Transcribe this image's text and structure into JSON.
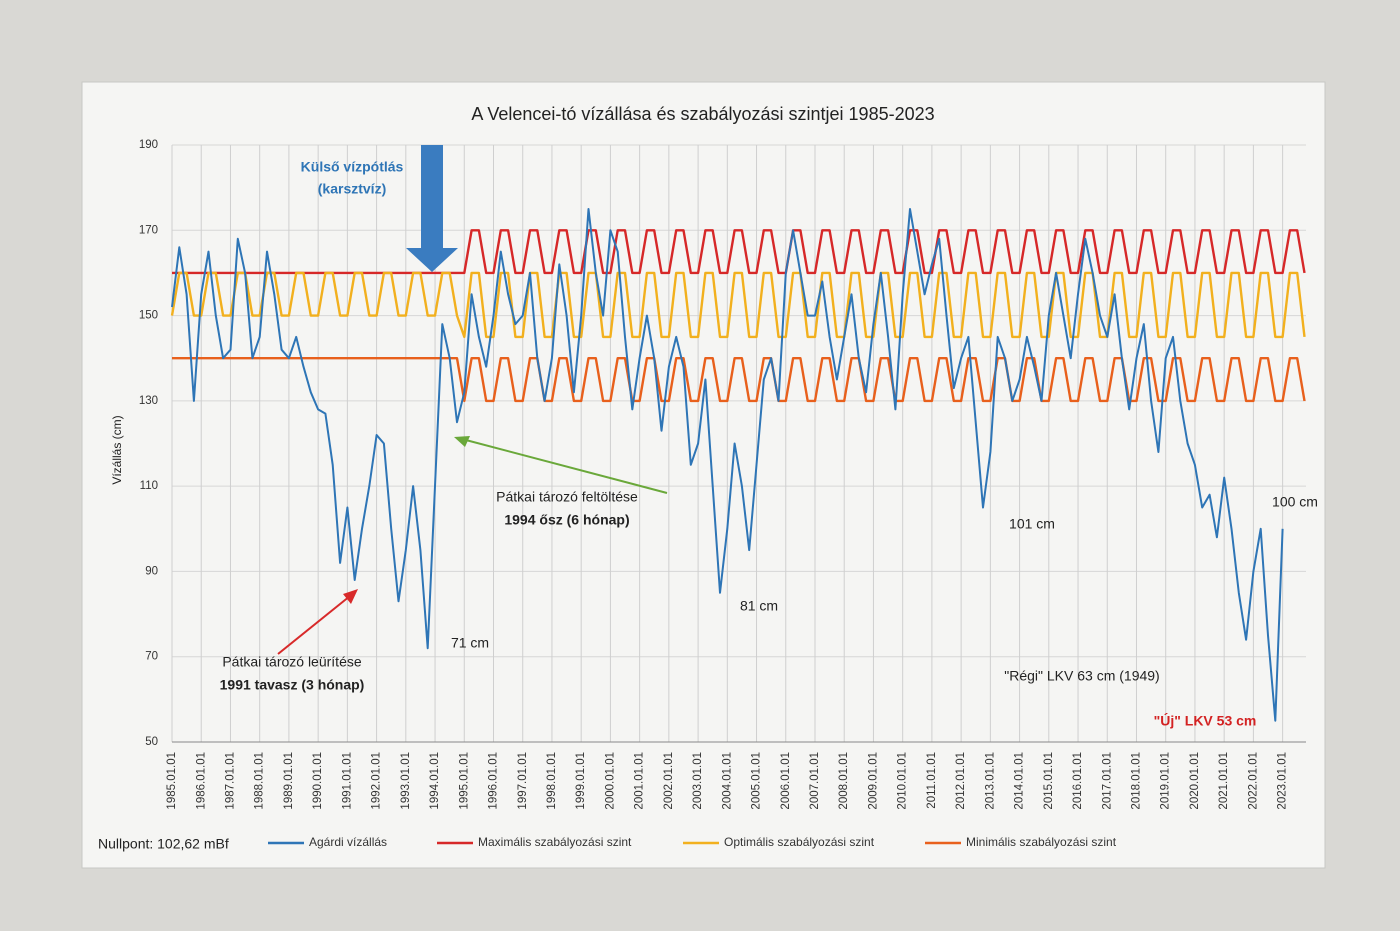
{
  "chart_data": {
    "type": "line",
    "title": "A Velencei-tó vízállása és szabályozási szintjei 1985-2023",
    "ylabel": "Vízállás (cm)",
    "xlim": [
      1985,
      2023.8
    ],
    "ylim": [
      50,
      190
    ],
    "yticks": [
      50,
      70,
      90,
      110,
      130,
      150,
      170,
      190
    ],
    "xticks": [
      {
        "value": 1985,
        "label": "1985.01.01"
      },
      {
        "value": 1986,
        "label": "1986.01.01"
      },
      {
        "value": 1987,
        "label": "1987.01.01"
      },
      {
        "value": 1988,
        "label": "1988.01.01"
      },
      {
        "value": 1989,
        "label": "1989.01.01"
      },
      {
        "value": 1990,
        "label": "1990.01.01"
      },
      {
        "value": 1991,
        "label": "1991.01.01"
      },
      {
        "value": 1992,
        "label": "1992.01.01"
      },
      {
        "value": 1993,
        "label": "1993.01.01"
      },
      {
        "value": 1994,
        "label": "1994.01.01"
      },
      {
        "value": 1995,
        "label": "1995.01.01"
      },
      {
        "value": 1996,
        "label": "1996.01.01"
      },
      {
        "value": 1997,
        "label": "1997.01.01"
      },
      {
        "value": 1998,
        "label": "1998.01.01"
      },
      {
        "value": 1999,
        "label": "1999.01.01"
      },
      {
        "value": 2000,
        "label": "2000.01.01"
      },
      {
        "value": 2001,
        "label": "2001.01.01"
      },
      {
        "value": 2002,
        "label": "2002.01.01"
      },
      {
        "value": 2003,
        "label": "2003.01.01"
      },
      {
        "value": 2004,
        "label": "2004.01.01"
      },
      {
        "value": 2005,
        "label": "2005.01.01"
      },
      {
        "value": 2006,
        "label": "2006.01.01"
      },
      {
        "value": 2007,
        "label": "2007.01.01"
      },
      {
        "value": 2008,
        "label": "2008.01.01"
      },
      {
        "value": 2009,
        "label": "2009.01.01"
      },
      {
        "value": 2010,
        "label": "2010.01.01"
      },
      {
        "value": 2011,
        "label": "2011.01.01"
      },
      {
        "value": 2012,
        "label": "2012.01.01"
      },
      {
        "value": 2013,
        "label": "2013.01.01"
      },
      {
        "value": 2014,
        "label": "2014.01.01"
      },
      {
        "value": 2015,
        "label": "2015.01.01"
      },
      {
        "value": 2016,
        "label": "2016.01.01"
      },
      {
        "value": 2017,
        "label": "2017.01.01"
      },
      {
        "value": 2018,
        "label": "2018.01.01"
      },
      {
        "value": 2019,
        "label": "2019.01.01"
      },
      {
        "value": 2020,
        "label": "2020.01.01"
      },
      {
        "value": 2021,
        "label": "2021.01.01"
      },
      {
        "value": 2022,
        "label": "2022.01.01"
      },
      {
        "value": 2023,
        "label": "2023.01.01"
      }
    ],
    "grid": true,
    "x": [
      1985,
      1985.25,
      1985.5,
      1985.75,
      1986,
      1986.25,
      1986.5,
      1986.75,
      1987,
      1987.25,
      1987.5,
      1987.75,
      1988,
      1988.25,
      1988.5,
      1988.75,
      1989,
      1989.25,
      1989.5,
      1989.75,
      1990,
      1990.25,
      1990.5,
      1990.75,
      1991,
      1991.25,
      1991.5,
      1991.75,
      1992,
      1992.25,
      1992.5,
      1992.75,
      1993,
      1993.25,
      1993.5,
      1993.75,
      1994,
      1994.25,
      1994.5,
      1994.75,
      1995,
      1995.25,
      1995.5,
      1995.75,
      1996,
      1996.25,
      1996.5,
      1996.75,
      1997,
      1997.25,
      1997.5,
      1997.75,
      1998,
      1998.25,
      1998.5,
      1998.75,
      1999,
      1999.25,
      1999.5,
      1999.75,
      2000,
      2000.25,
      2000.5,
      2000.75,
      2001,
      2001.25,
      2001.5,
      2001.75,
      2002,
      2002.25,
      2002.5,
      2002.75,
      2003,
      2003.25,
      2003.5,
      2003.75,
      2004,
      2004.25,
      2004.5,
      2004.75,
      2005,
      2005.25,
      2005.5,
      2005.75,
      2006,
      2006.25,
      2006.5,
      2006.75,
      2007,
      2007.25,
      2007.5,
      2007.75,
      2008,
      2008.25,
      2008.5,
      2008.75,
      2009,
      2009.25,
      2009.5,
      2009.75,
      2010,
      2010.25,
      2010.5,
      2010.75,
      2011,
      2011.25,
      2011.5,
      2011.75,
      2012,
      2012.25,
      2012.5,
      2012.75,
      2013,
      2013.25,
      2013.5,
      2013.75,
      2014,
      2014.25,
      2014.5,
      2014.75,
      2015,
      2015.25,
      2015.5,
      2015.75,
      2016,
      2016.25,
      2016.5,
      2016.75,
      2017,
      2017.25,
      2017.5,
      2017.75,
      2018,
      2018.25,
      2018.5,
      2018.75,
      2019,
      2019.25,
      2019.5,
      2019.75,
      2020,
      2020.25,
      2020.5,
      2020.75,
      2021,
      2021.25,
      2021.5,
      2021.75,
      2022,
      2022.25,
      2022.5,
      2022.75,
      2023,
      2023.25,
      2023.5,
      2023.75
    ],
    "series": [
      {
        "name": "Agárdi vízállás",
        "color": "#2e75b6",
        "values": [
          152,
          166,
          155,
          130,
          155,
          165,
          150,
          140,
          142,
          168,
          160,
          140,
          145,
          165,
          155,
          142,
          140,
          145,
          138,
          132,
          128,
          127,
          115,
          92,
          105,
          88,
          100,
          110,
          122,
          120,
          100,
          83,
          95,
          110,
          95,
          72,
          110,
          148,
          140,
          125,
          132,
          155,
          145,
          138,
          150,
          165,
          155,
          148,
          150,
          160,
          140,
          130,
          140,
          162,
          150,
          132,
          150,
          175,
          160,
          150,
          170,
          165,
          145,
          128,
          140,
          150,
          140,
          123,
          138,
          145,
          138,
          115,
          120,
          135,
          110,
          85,
          100,
          120,
          110,
          95,
          115,
          135,
          140,
          130,
          160,
          170,
          160,
          150,
          150,
          158,
          145,
          135,
          145,
          155,
          140,
          132,
          148,
          160,
          145,
          128,
          155,
          175,
          165,
          155,
          162,
          168,
          150,
          133,
          140,
          145,
          125,
          105,
          118,
          145,
          140,
          130,
          135,
          145,
          138,
          130,
          150,
          160,
          150,
          140,
          155,
          168,
          160,
          150,
          145,
          155,
          140,
          128,
          140,
          148,
          130,
          118,
          140,
          145,
          130,
          120,
          115,
          105,
          108,
          98,
          112,
          100,
          85,
          74,
          90,
          100,
          75,
          55,
          100,
          null,
          null,
          null
        ]
      },
      {
        "name": "Maximális szabályozási szint",
        "color": "#d62828",
        "values": [
          160,
          160,
          160,
          160,
          160,
          160,
          160,
          160,
          160,
          160,
          160,
          160,
          160,
          160,
          160,
          160,
          160,
          160,
          160,
          160,
          160,
          160,
          160,
          160,
          160,
          160,
          160,
          160,
          160,
          160,
          160,
          160,
          160,
          160,
          160,
          160,
          160,
          160,
          160,
          160,
          160,
          170,
          170,
          160,
          160,
          170,
          170,
          160,
          160,
          170,
          170,
          160,
          160,
          170,
          170,
          160,
          160,
          170,
          170,
          160,
          160,
          170,
          170,
          160,
          160,
          170,
          170,
          160,
          160,
          170,
          170,
          160,
          160,
          170,
          170,
          160,
          160,
          170,
          170,
          160,
          160,
          170,
          170,
          160,
          160,
          170,
          170,
          160,
          160,
          170,
          170,
          160,
          160,
          170,
          170,
          160,
          160,
          170,
          170,
          160,
          160,
          170,
          170,
          160,
          160,
          170,
          170,
          160,
          160,
          170,
          170,
          160,
          160,
          170,
          170,
          160,
          160,
          170,
          170,
          160,
          160,
          170,
          170,
          160,
          160,
          170,
          170,
          160,
          160,
          170,
          170,
          160,
          160,
          170,
          170,
          160,
          160,
          170,
          170,
          160,
          160,
          170,
          170,
          160,
          160,
          170,
          170,
          160,
          160,
          170,
          170,
          160,
          160,
          170,
          170,
          160
        ]
      },
      {
        "name": "Optimális szabályozási szint",
        "color": "#f2b01e",
        "values": [
          150,
          160,
          160,
          150,
          150,
          160,
          160,
          150,
          150,
          160,
          160,
          150,
          150,
          160,
          160,
          150,
          150,
          160,
          160,
          150,
          150,
          160,
          160,
          150,
          150,
          160,
          160,
          150,
          150,
          160,
          160,
          150,
          150,
          160,
          160,
          150,
          150,
          160,
          160,
          150,
          145,
          160,
          160,
          145,
          145,
          160,
          160,
          145,
          145,
          160,
          160,
          145,
          145,
          160,
          160,
          145,
          145,
          160,
          160,
          145,
          145,
          160,
          160,
          145,
          145,
          160,
          160,
          145,
          145,
          160,
          160,
          145,
          145,
          160,
          160,
          145,
          145,
          160,
          160,
          145,
          145,
          160,
          160,
          145,
          145,
          160,
          160,
          145,
          145,
          160,
          160,
          145,
          145,
          160,
          160,
          145,
          145,
          160,
          160,
          145,
          145,
          160,
          160,
          145,
          145,
          160,
          160,
          145,
          145,
          160,
          160,
          145,
          145,
          160,
          160,
          145,
          145,
          160,
          160,
          145,
          145,
          160,
          160,
          145,
          145,
          160,
          160,
          145,
          145,
          160,
          160,
          145,
          145,
          160,
          160,
          145,
          145,
          160,
          160,
          145,
          145,
          160,
          160,
          145,
          145,
          160,
          160,
          145,
          145,
          160,
          160,
          145,
          145,
          160,
          160,
          145
        ]
      },
      {
        "name": "Minimális szabályozási szint",
        "color": "#e8601c",
        "values": [
          140,
          140,
          140,
          140,
          140,
          140,
          140,
          140,
          140,
          140,
          140,
          140,
          140,
          140,
          140,
          140,
          140,
          140,
          140,
          140,
          140,
          140,
          140,
          140,
          140,
          140,
          140,
          140,
          140,
          140,
          140,
          140,
          140,
          140,
          140,
          140,
          140,
          140,
          140,
          140,
          130,
          140,
          140,
          130,
          130,
          140,
          140,
          130,
          130,
          140,
          140,
          130,
          130,
          140,
          140,
          130,
          130,
          140,
          140,
          130,
          130,
          140,
          140,
          130,
          130,
          140,
          140,
          130,
          130,
          140,
          140,
          130,
          130,
          140,
          140,
          130,
          130,
          140,
          140,
          130,
          130,
          140,
          140,
          130,
          130,
          140,
          140,
          130,
          130,
          140,
          140,
          130,
          130,
          140,
          140,
          130,
          130,
          140,
          140,
          130,
          130,
          140,
          140,
          130,
          130,
          140,
          140,
          130,
          130,
          140,
          140,
          130,
          130,
          140,
          140,
          130,
          130,
          140,
          140,
          130,
          130,
          140,
          140,
          130,
          130,
          140,
          140,
          130,
          130,
          140,
          140,
          130,
          130,
          140,
          140,
          130,
          130,
          140,
          140,
          130,
          130,
          140,
          140,
          130,
          130,
          140,
          140,
          130,
          130,
          140,
          140,
          130,
          130,
          140,
          140,
          130
        ]
      }
    ],
    "annotations": [
      "Külső vízpótlás",
      "(karsztvíz)",
      "Pátkai tározó feltöltése",
      "1994 ősz (6 hónap)",
      "Pátkai tározó leürítése",
      "1991 tavasz (3 hónap)",
      "71 cm",
      "81 cm",
      "101 cm",
      "100 cm",
      "\"Régi\" LKV 63 cm (1949)",
      "\"Új\" LKV 53 cm",
      "Nullpont: 102,62 mBf"
    ]
  }
}
